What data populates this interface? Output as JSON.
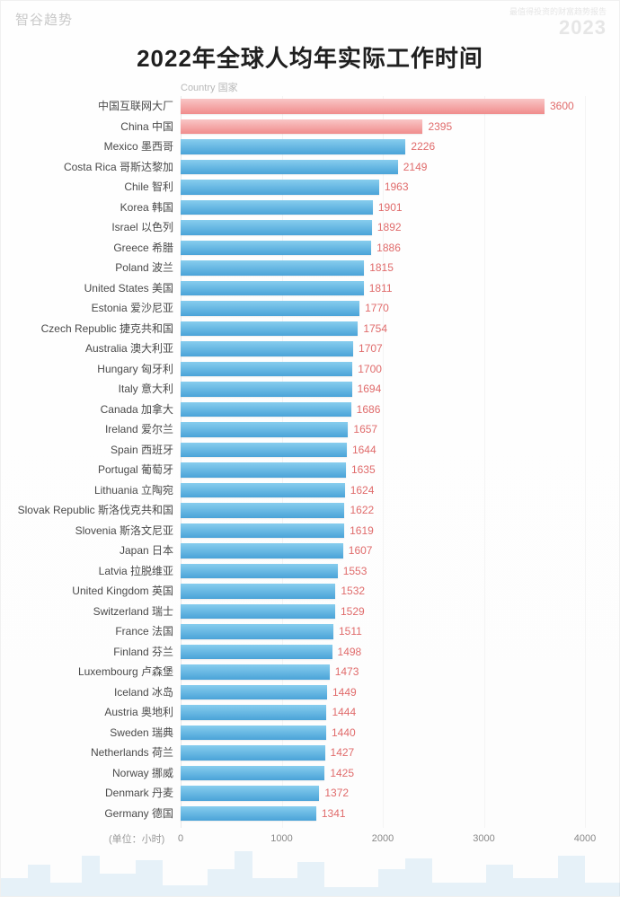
{
  "watermark": {
    "top_left": "智谷趋势",
    "top_right_small": "最值得投资的财富趋势报告",
    "top_right_year": "2023"
  },
  "chart": {
    "type": "bar-horizontal",
    "title": "2022年全球人均年实际工作时间",
    "y_axis_label": "Country 国家",
    "x_unit_label": "(单位：小时)",
    "x_min": 0,
    "x_max": 4000,
    "x_tick_step": 1000,
    "x_ticks": [
      0,
      1000,
      2000,
      3000,
      4000
    ],
    "bar_color_default": "#5fb3e4",
    "bar_gradient_default_start": "#87cdee",
    "bar_gradient_default_end": "#4aa3d8",
    "bar_color_highlight": "#f5a6a6",
    "bar_gradient_highlight_start": "#f9c6c6",
    "bar_gradient_highlight_end": "#f08c8c",
    "value_label_color": "#e06b6b",
    "category_label_color": "#4a4a4a",
    "grid_color": "#f4f4f4",
    "background_color": "#ffffff",
    "title_fontsize": 26,
    "label_fontsize": 12,
    "row_height": 22.5,
    "data": [
      {
        "label": "中国互联网大厂",
        "value": 3600,
        "highlight": true
      },
      {
        "label": "China 中国",
        "value": 2395,
        "highlight": true
      },
      {
        "label": "Mexico 墨西哥",
        "value": 2226,
        "highlight": false
      },
      {
        "label": "Costa Rica 哥斯达黎加",
        "value": 2149,
        "highlight": false
      },
      {
        "label": "Chile 智利",
        "value": 1963,
        "highlight": false
      },
      {
        "label": "Korea 韩国",
        "value": 1901,
        "highlight": false
      },
      {
        "label": "Israel 以色列",
        "value": 1892,
        "highlight": false
      },
      {
        "label": "Greece 希腊",
        "value": 1886,
        "highlight": false
      },
      {
        "label": "Poland 波兰",
        "value": 1815,
        "highlight": false
      },
      {
        "label": "United States 美国",
        "value": 1811,
        "highlight": false
      },
      {
        "label": "Estonia 爱沙尼亚",
        "value": 1770,
        "highlight": false
      },
      {
        "label": "Czech Republic 捷克共和国",
        "value": 1754,
        "highlight": false
      },
      {
        "label": "Australia 澳大利亚",
        "value": 1707,
        "highlight": false
      },
      {
        "label": "Hungary 匈牙利",
        "value": 1700,
        "highlight": false
      },
      {
        "label": "Italy 意大利",
        "value": 1694,
        "highlight": false
      },
      {
        "label": "Canada 加拿大",
        "value": 1686,
        "highlight": false
      },
      {
        "label": "Ireland 爱尔兰",
        "value": 1657,
        "highlight": false
      },
      {
        "label": "Spain 西班牙",
        "value": 1644,
        "highlight": false
      },
      {
        "label": "Portugal 葡萄牙",
        "value": 1635,
        "highlight": false
      },
      {
        "label": "Lithuania 立陶宛",
        "value": 1624,
        "highlight": false
      },
      {
        "label": "Slovak Republic 斯洛伐克共和国",
        "value": 1622,
        "highlight": false
      },
      {
        "label": "Slovenia 斯洛文尼亚",
        "value": 1619,
        "highlight": false
      },
      {
        "label": "Japan 日本",
        "value": 1607,
        "highlight": false
      },
      {
        "label": "Latvia 拉脱维亚",
        "value": 1553,
        "highlight": false
      },
      {
        "label": "United Kingdom 英国",
        "value": 1532,
        "highlight": false
      },
      {
        "label": "Switzerland 瑞士",
        "value": 1529,
        "highlight": false
      },
      {
        "label": "France 法国",
        "value": 1511,
        "highlight": false
      },
      {
        "label": "Finland 芬兰",
        "value": 1498,
        "highlight": false
      },
      {
        "label": "Luxembourg 卢森堡",
        "value": 1473,
        "highlight": false
      },
      {
        "label": "Iceland 冰岛",
        "value": 1449,
        "highlight": false
      },
      {
        "label": "Austria 奥地利",
        "value": 1444,
        "highlight": false
      },
      {
        "label": "Sweden 瑞典",
        "value": 1440,
        "highlight": false
      },
      {
        "label": "Netherlands 荷兰",
        "value": 1427,
        "highlight": false
      },
      {
        "label": "Norway 挪威",
        "value": 1425,
        "highlight": false
      },
      {
        "label": "Denmark 丹麦",
        "value": 1372,
        "highlight": false
      },
      {
        "label": "Germany 德国",
        "value": 1341,
        "highlight": false
      }
    ]
  }
}
